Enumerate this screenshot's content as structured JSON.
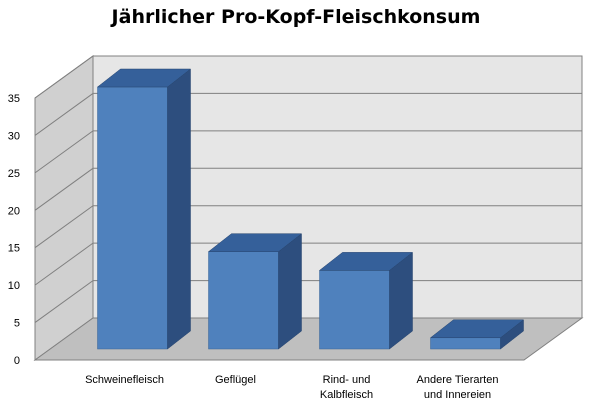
{
  "chart_data": {
    "type": "bar",
    "title": "Jährlicher Pro-Kopf-Fleischkonsum",
    "categories": [
      [
        "Schweinefleisch"
      ],
      [
        "Geflügel"
      ],
      [
        "Rind- und",
        "Kalbfleisch"
      ],
      [
        "Andere Tierarten",
        "und Innereien"
      ]
    ],
    "values": [
      35,
      13,
      10.5,
      1.5
    ],
    "ylim": [
      0,
      35
    ],
    "yticks": [
      "0",
      "5",
      "10",
      "15",
      "20",
      "25",
      "30",
      "35"
    ],
    "grid": true,
    "legend": "none",
    "colors": {
      "bar_front": "#4f81bd",
      "bar_top": "#35609a",
      "bar_side": "#2d4e7e",
      "back_wall": "#e6e6e6",
      "side_wall": "#d0d0d0",
      "floor": "#bfbfbf",
      "grid": "#808080"
    }
  }
}
